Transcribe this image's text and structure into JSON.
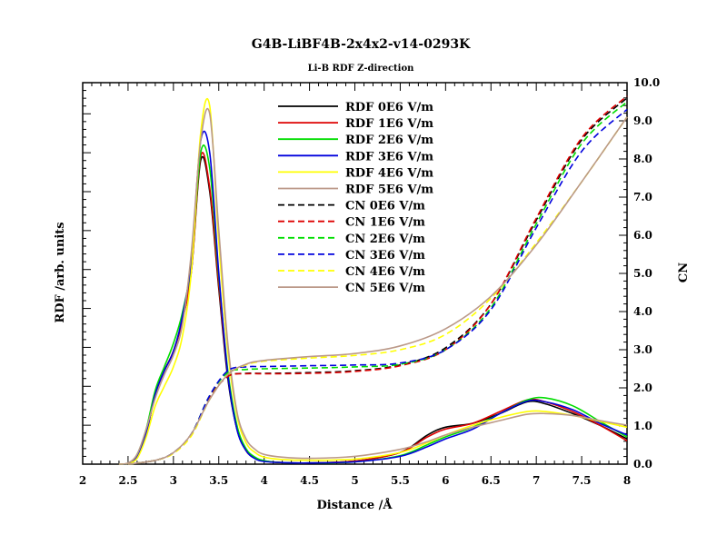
{
  "chart_data": {
    "type": "line",
    "title": "G4B-LiBF4B-2x4x2-v14-0293K",
    "subtitle": "Li-B RDF Z-direction",
    "xlabel": "Distance /Å",
    "ylabel": "RDF /arb. units",
    "y2label": "CN",
    "xlim": [
      2,
      8
    ],
    "y2lim": [
      0,
      10
    ],
    "x_ticks": [
      "2",
      "2.5",
      "3",
      "3.5",
      "4",
      "4.5",
      "5",
      "5.5",
      "6",
      "6.5",
      "7",
      "7.5",
      "8"
    ],
    "y2_ticks": [
      "0.0",
      "1.0",
      "2.0",
      "3.0",
      "4.0",
      "5.0",
      "6.0",
      "7.0",
      "8.0",
      "9.0",
      "10.0"
    ],
    "legend_position": "top-center",
    "series": [
      {
        "name": "RDF 0E6 V/m",
        "axis": "left",
        "color": "#000000",
        "dash": false,
        "x": [
          2.4,
          2.5,
          2.6,
          2.7,
          2.8,
          2.9,
          3.0,
          3.1,
          3.2,
          3.3,
          3.4,
          3.5,
          3.6,
          3.7,
          3.8,
          3.9,
          4.0,
          4.2,
          4.5,
          5.0,
          5.5,
          5.8,
          6.0,
          6.3,
          6.6,
          6.9,
          7.1,
          7.4,
          7.7,
          8.0
        ],
        "y": [
          0,
          0.02,
          0.2,
          0.8,
          1.8,
          2.4,
          2.9,
          3.7,
          5.0,
          7.8,
          7.0,
          4.5,
          2.2,
          0.9,
          0.35,
          0.15,
          0.08,
          0.04,
          0.03,
          0.08,
          0.3,
          0.75,
          0.95,
          1.05,
          1.3,
          1.6,
          1.55,
          1.3,
          1.0,
          0.65
        ]
      },
      {
        "name": "RDF 1E6 V/m",
        "axis": "left",
        "color": "#dd0000",
        "dash": false,
        "x": [
          2.4,
          2.5,
          2.6,
          2.7,
          2.8,
          2.9,
          3.0,
          3.1,
          3.2,
          3.3,
          3.4,
          3.5,
          3.6,
          3.7,
          3.8,
          3.9,
          4.0,
          4.2,
          4.5,
          5.0,
          5.5,
          5.8,
          6.0,
          6.3,
          6.6,
          6.9,
          7.1,
          7.4,
          7.7,
          8.0
        ],
        "y": [
          0,
          0.02,
          0.2,
          0.8,
          1.8,
          2.4,
          2.9,
          3.7,
          5.0,
          7.9,
          7.1,
          4.6,
          2.3,
          0.95,
          0.35,
          0.15,
          0.08,
          0.04,
          0.03,
          0.08,
          0.3,
          0.7,
          0.9,
          1.05,
          1.35,
          1.65,
          1.6,
          1.35,
          1.0,
          0.6
        ]
      },
      {
        "name": "RDF 2E6 V/m",
        "axis": "left",
        "color": "#00dd00",
        "dash": false,
        "x": [
          2.4,
          2.5,
          2.6,
          2.7,
          2.8,
          2.9,
          3.0,
          3.1,
          3.2,
          3.3,
          3.4,
          3.5,
          3.6,
          3.7,
          3.8,
          3.9,
          4.0,
          4.2,
          4.5,
          5.0,
          5.5,
          5.8,
          6.0,
          6.3,
          6.6,
          6.9,
          7.1,
          7.4,
          7.7,
          8.0
        ],
        "y": [
          0,
          0.02,
          0.25,
          0.9,
          1.9,
          2.5,
          3.1,
          3.9,
          5.2,
          8.0,
          7.6,
          4.8,
          2.4,
          1.0,
          0.4,
          0.18,
          0.09,
          0.04,
          0.03,
          0.06,
          0.22,
          0.5,
          0.7,
          0.95,
          1.3,
          1.65,
          1.7,
          1.5,
          1.1,
          0.7
        ]
      },
      {
        "name": "RDF 3E6 V/m",
        "axis": "left",
        "color": "#0000dd",
        "dash": false,
        "x": [
          2.4,
          2.5,
          2.6,
          2.7,
          2.8,
          2.9,
          3.0,
          3.1,
          3.2,
          3.3,
          3.4,
          3.5,
          3.6,
          3.7,
          3.8,
          3.9,
          4.0,
          4.2,
          4.5,
          5.0,
          5.5,
          5.8,
          6.0,
          6.3,
          6.6,
          6.9,
          7.1,
          7.4,
          7.7,
          8.0
        ],
        "y": [
          0,
          0.02,
          0.2,
          0.8,
          1.8,
          2.4,
          2.9,
          3.8,
          5.3,
          8.3,
          8.0,
          4.9,
          2.3,
          0.9,
          0.35,
          0.14,
          0.07,
          0.04,
          0.03,
          0.06,
          0.2,
          0.45,
          0.65,
          0.9,
          1.3,
          1.62,
          1.6,
          1.4,
          1.05,
          0.75
        ]
      },
      {
        "name": "RDF 4E6 V/m",
        "axis": "left",
        "color": "#ffff00",
        "dash": false,
        "x": [
          2.4,
          2.5,
          2.6,
          2.7,
          2.8,
          2.9,
          3.0,
          3.1,
          3.2,
          3.3,
          3.4,
          3.5,
          3.6,
          3.7,
          3.8,
          3.9,
          4.0,
          4.2,
          4.5,
          5.0,
          5.5,
          5.8,
          6.0,
          6.3,
          6.6,
          6.9,
          7.1,
          7.4,
          7.7,
          8.0
        ],
        "y": [
          0,
          0.02,
          0.15,
          0.7,
          1.5,
          2.0,
          2.5,
          3.3,
          5.0,
          8.5,
          9.2,
          5.7,
          2.9,
          1.25,
          0.55,
          0.3,
          0.18,
          0.12,
          0.1,
          0.13,
          0.3,
          0.55,
          0.75,
          1.0,
          1.2,
          1.35,
          1.35,
          1.25,
          1.1,
          0.95
        ]
      },
      {
        "name": "RDF 5E6 V/m",
        "axis": "left",
        "color": "#bb9988",
        "dash": false,
        "x": [
          2.4,
          2.5,
          2.6,
          2.7,
          2.8,
          2.9,
          3.0,
          3.1,
          3.2,
          3.3,
          3.4,
          3.5,
          3.6,
          3.7,
          3.8,
          3.9,
          4.0,
          4.2,
          4.5,
          5.0,
          5.5,
          5.8,
          6.0,
          6.3,
          6.6,
          6.9,
          7.1,
          7.4,
          7.7,
          8.0
        ],
        "y": [
          0,
          0.03,
          0.25,
          0.9,
          1.7,
          2.3,
          2.8,
          3.6,
          5.5,
          8.3,
          9.0,
          6.0,
          3.1,
          1.35,
          0.65,
          0.38,
          0.25,
          0.18,
          0.15,
          0.2,
          0.38,
          0.58,
          0.75,
          0.95,
          1.12,
          1.28,
          1.3,
          1.25,
          1.12,
          1.0
        ]
      },
      {
        "name": "CN 0E6 V/m",
        "axis": "right",
        "color": "#000000",
        "dash": true,
        "x": [
          2.5,
          2.8,
          3.0,
          3.2,
          3.4,
          3.6,
          3.8,
          4.0,
          4.5,
          5.0,
          5.5,
          6.0,
          6.5,
          7.0,
          7.5,
          8.0
        ],
        "y": [
          0,
          0.1,
          0.3,
          0.8,
          1.75,
          2.3,
          2.38,
          2.38,
          2.4,
          2.45,
          2.6,
          3.05,
          4.2,
          6.4,
          8.5,
          9.6
        ]
      },
      {
        "name": "CN 1E6 V/m",
        "axis": "right",
        "color": "#dd0000",
        "dash": true,
        "x": [
          2.5,
          2.8,
          3.0,
          3.2,
          3.4,
          3.6,
          3.8,
          4.0,
          4.5,
          5.0,
          5.5,
          6.0,
          6.5,
          7.0,
          7.5,
          8.0
        ],
        "y": [
          0,
          0.1,
          0.3,
          0.8,
          1.75,
          2.3,
          2.37,
          2.37,
          2.38,
          2.43,
          2.58,
          3.0,
          4.2,
          6.45,
          8.55,
          9.65
        ]
      },
      {
        "name": "CN 2E6 V/m",
        "axis": "right",
        "color": "#00dd00",
        "dash": true,
        "x": [
          2.5,
          2.8,
          3.0,
          3.2,
          3.4,
          3.6,
          3.8,
          4.0,
          4.5,
          5.0,
          5.5,
          6.0,
          6.5,
          7.0,
          7.5,
          8.0
        ],
        "y": [
          0,
          0.1,
          0.3,
          0.8,
          1.8,
          2.4,
          2.48,
          2.5,
          2.52,
          2.55,
          2.62,
          3.0,
          4.1,
          6.3,
          8.4,
          9.5
        ]
      },
      {
        "name": "CN 3E6 V/m",
        "axis": "right",
        "color": "#0000dd",
        "dash": true,
        "x": [
          2.5,
          2.8,
          3.0,
          3.2,
          3.4,
          3.6,
          3.8,
          4.0,
          4.5,
          5.0,
          5.5,
          6.0,
          6.5,
          7.0,
          7.5,
          8.0
        ],
        "y": [
          0,
          0.1,
          0.3,
          0.8,
          1.8,
          2.45,
          2.55,
          2.56,
          2.58,
          2.6,
          2.65,
          3.0,
          4.05,
          6.2,
          8.2,
          9.3
        ]
      },
      {
        "name": "CN 4E6 V/m",
        "axis": "right",
        "color": "#ffff00",
        "dash": true,
        "x": [
          2.5,
          2.8,
          3.0,
          3.2,
          3.4,
          3.6,
          3.8,
          4.0,
          4.5,
          5.0,
          5.5,
          6.0,
          6.5,
          7.0,
          7.5,
          8.0
        ],
        "y": [
          0,
          0.1,
          0.28,
          0.75,
          1.7,
          2.35,
          2.6,
          2.7,
          2.78,
          2.85,
          3.0,
          3.4,
          4.35,
          5.8,
          7.4,
          9.1
        ]
      },
      {
        "name": "CN 5E6 V/m",
        "axis": "right",
        "color": "#bb9988",
        "dash": false,
        "x": [
          2.5,
          2.8,
          3.0,
          3.2,
          3.4,
          3.6,
          3.8,
          4.0,
          4.5,
          5.0,
          5.5,
          6.0,
          6.5,
          7.0,
          7.5,
          8.0
        ],
        "y": [
          0,
          0.1,
          0.3,
          0.8,
          1.7,
          2.35,
          2.62,
          2.72,
          2.82,
          2.9,
          3.1,
          3.55,
          4.4,
          5.75,
          7.4,
          9.1
        ]
      }
    ]
  }
}
